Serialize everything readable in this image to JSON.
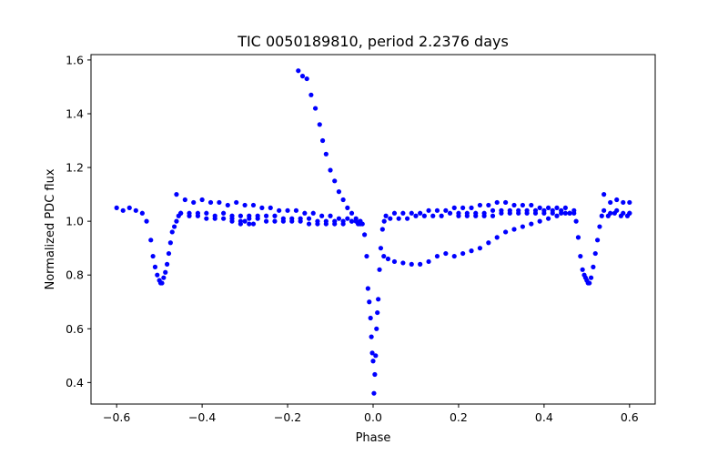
{
  "chart_data": {
    "type": "scatter",
    "title": "TIC 0050189810, period 2.2376 days",
    "xlabel": "Phase",
    "ylabel": "Normalized PDC flux",
    "xlim": [
      -0.66,
      0.66
    ],
    "ylim": [
      0.32,
      1.62
    ],
    "xticks": [
      -0.6,
      -0.4,
      -0.2,
      0.0,
      0.2,
      0.4,
      0.6
    ],
    "xtick_labels": [
      "−0.6",
      "−0.4",
      "−0.2",
      "0.0",
      "0.2",
      "0.4",
      "0.6"
    ],
    "yticks": [
      0.4,
      0.6,
      0.8,
      1.0,
      1.2,
      1.4,
      1.6
    ],
    "ytick_labels": [
      "0.4",
      "0.6",
      "0.8",
      "1.0",
      "1.2",
      "1.4",
      "1.6"
    ],
    "grid": false,
    "marker_color": "#0000ff",
    "series": [
      {
        "x": [
          -0.6,
          -0.585,
          -0.57,
          -0.555,
          -0.54,
          -0.53,
          -0.52,
          -0.515,
          -0.51,
          -0.505,
          -0.5,
          -0.497,
          -0.494,
          -0.49,
          -0.486,
          -0.482,
          -0.478,
          -0.474,
          -0.47,
          -0.465,
          -0.46,
          -0.455,
          -0.45,
          -0.43,
          -0.41,
          -0.39,
          -0.37,
          -0.35,
          -0.33,
          -0.31,
          -0.29,
          -0.27,
          -0.25,
          -0.23,
          -0.21,
          -0.19,
          -0.17,
          -0.15,
          -0.13,
          -0.11,
          -0.09,
          -0.07,
          -0.05,
          -0.035,
          -0.025,
          -0.46,
          -0.44,
          -0.42,
          -0.4,
          -0.38,
          -0.36,
          -0.34,
          -0.32,
          -0.3,
          -0.28,
          -0.26,
          -0.24,
          -0.22,
          -0.2,
          -0.18,
          -0.16,
          -0.14,
          -0.12,
          -0.1,
          -0.08,
          -0.06,
          -0.04,
          -0.03,
          -0.45,
          -0.43,
          -0.41,
          -0.39,
          -0.37,
          -0.35,
          -0.33,
          -0.31,
          -0.29,
          -0.27,
          -0.25,
          -0.23,
          -0.21,
          -0.19,
          -0.17,
          -0.15,
          -0.13,
          -0.11,
          -0.09,
          -0.07,
          -0.05,
          -0.03,
          -0.33,
          -0.31,
          -0.3,
          -0.29,
          -0.28,
          -0.175,
          -0.165,
          -0.155,
          -0.145,
          -0.135,
          -0.125,
          -0.118,
          -0.11,
          -0.1,
          -0.09,
          -0.08,
          -0.07,
          -0.06,
          -0.05,
          -0.04,
          -0.03,
          -0.02,
          -0.015,
          -0.012,
          -0.009,
          -0.006,
          -0.004,
          -0.002,
          0.0,
          0.002,
          0.004,
          0.006,
          0.008,
          0.01,
          0.012,
          0.015,
          0.018,
          0.022,
          0.026,
          0.03,
          0.05,
          0.07,
          0.09,
          0.11,
          0.13,
          0.15,
          0.17,
          0.19,
          0.21,
          0.23,
          0.25,
          0.27,
          0.29,
          0.31,
          0.33,
          0.35,
          0.37,
          0.39,
          0.41,
          0.43,
          0.45,
          0.47,
          0.04,
          0.06,
          0.08,
          0.1,
          0.12,
          0.14,
          0.16,
          0.18,
          0.2,
          0.22,
          0.24,
          0.26,
          0.28,
          0.3,
          0.32,
          0.34,
          0.36,
          0.38,
          0.4,
          0.42,
          0.44,
          0.46,
          0.2,
          0.22,
          0.24,
          0.26,
          0.28,
          0.3,
          0.32,
          0.34,
          0.36,
          0.38,
          0.4,
          0.42,
          0.44,
          0.46,
          0.025,
          0.035,
          0.05,
          0.07,
          0.09,
          0.11,
          0.13,
          0.15,
          0.17,
          0.19,
          0.21,
          0.23,
          0.25,
          0.27,
          0.29,
          0.31,
          0.33,
          0.35,
          0.37,
          0.39,
          0.41,
          0.43,
          0.45,
          0.47,
          0.475,
          0.48,
          0.485,
          0.49,
          0.494,
          0.497,
          0.5,
          0.503,
          0.506,
          0.51,
          0.515,
          0.52,
          0.525,
          0.53,
          0.535,
          0.54,
          0.555,
          0.57,
          0.585,
          0.6,
          0.54,
          0.555,
          0.57,
          0.585,
          0.6,
          0.55,
          0.565,
          0.58,
          0.595,
          0.6
        ],
        "y": [
          1.05,
          1.04,
          1.05,
          1.04,
          1.03,
          1.0,
          0.93,
          0.87,
          0.83,
          0.8,
          0.78,
          0.77,
          0.77,
          0.79,
          0.81,
          0.84,
          0.88,
          0.92,
          0.96,
          0.98,
          1.0,
          1.02,
          1.03,
          1.03,
          1.03,
          1.03,
          1.02,
          1.03,
          1.02,
          1.02,
          1.02,
          1.02,
          1.02,
          1.02,
          1.01,
          1.01,
          1.01,
          1.01,
          1.0,
          1.0,
          1.0,
          1.0,
          1.0,
          0.99,
          0.99,
          1.1,
          1.08,
          1.07,
          1.08,
          1.07,
          1.07,
          1.06,
          1.07,
          1.06,
          1.06,
          1.05,
          1.05,
          1.04,
          1.04,
          1.04,
          1.03,
          1.03,
          1.02,
          1.02,
          1.01,
          1.01,
          1.0,
          1.0,
          1.03,
          1.02,
          1.02,
          1.01,
          1.01,
          1.01,
          1.01,
          1.0,
          1.01,
          1.01,
          1.0,
          1.0,
          1.0,
          1.0,
          1.0,
          0.99,
          0.99,
          0.99,
          0.99,
          0.99,
          1.0,
          1.0,
          1.0,
          0.99,
          1.0,
          0.99,
          0.99,
          1.56,
          1.54,
          1.53,
          1.47,
          1.42,
          1.36,
          1.3,
          1.25,
          1.19,
          1.15,
          1.11,
          1.08,
          1.05,
          1.03,
          1.01,
          0.99,
          0.95,
          0.87,
          0.75,
          0.7,
          0.64,
          0.57,
          0.51,
          0.48,
          0.36,
          0.43,
          0.5,
          0.6,
          0.66,
          0.71,
          0.82,
          0.9,
          0.97,
          1.0,
          1.02,
          1.03,
          1.03,
          1.03,
          1.03,
          1.04,
          1.04,
          1.04,
          1.05,
          1.05,
          1.05,
          1.06,
          1.06,
          1.07,
          1.07,
          1.06,
          1.06,
          1.06,
          1.05,
          1.05,
          1.05,
          1.05,
          1.04,
          1.01,
          1.01,
          1.01,
          1.02,
          1.02,
          1.02,
          1.02,
          1.03,
          1.03,
          1.03,
          1.03,
          1.03,
          1.04,
          1.04,
          1.04,
          1.04,
          1.04,
          1.04,
          1.04,
          1.04,
          1.04,
          1.03,
          1.02,
          1.02,
          1.02,
          1.02,
          1.02,
          1.03,
          1.03,
          1.03,
          1.03,
          1.03,
          1.03,
          1.03,
          1.03,
          1.03,
          0.87,
          0.86,
          0.85,
          0.845,
          0.84,
          0.84,
          0.85,
          0.87,
          0.88,
          0.87,
          0.88,
          0.89,
          0.9,
          0.92,
          0.94,
          0.96,
          0.97,
          0.98,
          0.99,
          1.0,
          1.01,
          1.02,
          1.03,
          1.03,
          1.0,
          0.94,
          0.87,
          0.82,
          0.8,
          0.79,
          0.78,
          0.77,
          0.77,
          0.79,
          0.83,
          0.88,
          0.93,
          0.98,
          1.02,
          1.1,
          1.07,
          1.08,
          1.07,
          1.07,
          1.04,
          1.03,
          1.04,
          1.03,
          1.03,
          1.02,
          1.03,
          1.02,
          1.02,
          1.03
        ]
      }
    ]
  }
}
